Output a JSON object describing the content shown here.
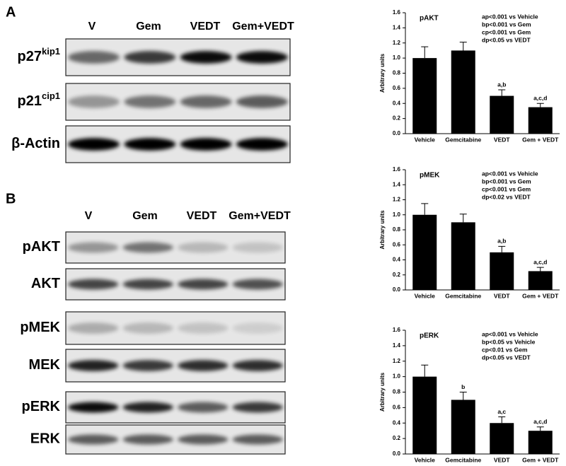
{
  "chart_data": [
    {
      "type": "bar",
      "title": "pAKT",
      "y_label": "Arbitrary units",
      "categories": [
        "Vehicle",
        "Gemcitabine",
        "VEDT",
        "Gem + VEDT"
      ],
      "values": [
        1.0,
        1.1,
        0.5,
        0.35
      ],
      "errors": [
        0.15,
        0.11,
        0.08,
        0.05
      ],
      "bar_labels": [
        null,
        null,
        "a,b",
        "a,c,d"
      ],
      "color": "#000000",
      "notes": [
        "ap<0.001 vs Vehicle",
        "bp<0.001 vs Gem",
        "cp<0.001 vs Gem",
        "dp<0.05 vs VEDT"
      ],
      "ylim": [
        0,
        1.6
      ],
      "yticks": [
        {
          "value": 0,
          "label": "0.0"
        },
        {
          "value": 0.2,
          "label": "0.2"
        },
        {
          "value": 0.4,
          "label": "0.4"
        },
        {
          "value": 0.6,
          "label": "0.6"
        },
        {
          "value": 0.8,
          "label": "0.8"
        },
        {
          "value": 1,
          "label": "1.0"
        },
        {
          "value": 1.2,
          "label": "1.2"
        },
        {
          "value": 1.4,
          "label": "1.4"
        },
        {
          "value": 1.6,
          "label": "1.6"
        }
      ]
    },
    {
      "type": "bar",
      "title": "pMEK",
      "y_label": "Arbitrary units",
      "categories": [
        "Vehicle",
        "Gemcitabine",
        "VEDT",
        "Gem + VEDT"
      ],
      "values": [
        1.0,
        0.9,
        0.5,
        0.25
      ],
      "errors": [
        0.15,
        0.11,
        0.08,
        0.05
      ],
      "bar_labels": [
        null,
        null,
        "a,b",
        "a,c,d"
      ],
      "color": "#000000",
      "notes": [
        "ap<0.001 vs Vehicle",
        "bp<0.001 vs Gem",
        "cp<0.001 vs Gem",
        "dp<0.02 vs VEDT"
      ],
      "ylim": [
        0,
        1.6
      ],
      "yticks": [
        {
          "value": 0,
          "label": "0.0"
        },
        {
          "value": 0.2,
          "label": "0.2"
        },
        {
          "value": 0.4,
          "label": "0.4"
        },
        {
          "value": 0.6,
          "label": "0.6"
        },
        {
          "value": 0.8,
          "label": "0.8"
        },
        {
          "value": 1,
          "label": "1.0"
        },
        {
          "value": 1.2,
          "label": "1.2"
        },
        {
          "value": 1.4,
          "label": "1.4"
        },
        {
          "value": 1.6,
          "label": "1.6"
        }
      ]
    },
    {
      "type": "bar",
      "title": "pERK",
      "y_label": "Arbitrary units",
      "categories": [
        "Vehicle",
        "Gemcitabine",
        "VEDT",
        "Gem + VEDT"
      ],
      "values": [
        1.0,
        0.7,
        0.4,
        0.3
      ],
      "errors": [
        0.15,
        0.1,
        0.08,
        0.05
      ],
      "bar_labels": [
        null,
        "b",
        "a,c",
        "a,c,d"
      ],
      "color": "#000000",
      "notes": [
        "ap<0.001 vs Vehicle",
        "bp<0.05 vs Vehicle",
        "cp<0.01 vs Gem",
        "dp<0.05 vs VEDT"
      ],
      "ylim": [
        0,
        1.6
      ],
      "yticks": [
        {
          "value": 0,
          "label": "0.0"
        },
        {
          "value": 0.2,
          "label": "0.2"
        },
        {
          "value": 0.4,
          "label": "0.4"
        },
        {
          "value": 0.6,
          "label": "0.6"
        },
        {
          "value": 0.8,
          "label": "0.8"
        },
        {
          "value": 1,
          "label": "1.0"
        },
        {
          "value": 1.2,
          "label": "1.2"
        },
        {
          "value": 1.4,
          "label": "1.4"
        },
        {
          "value": 1.6,
          "label": "1.6"
        }
      ]
    }
  ],
  "blots": [
    {
      "label": "A",
      "lanes": [
        "V",
        "Gem",
        "VEDT",
        "Gem+VEDT"
      ],
      "rows": [
        {
          "label": "p27",
          "sup": "kip1"
        },
        {
          "label": "p21",
          "sup": "cip1"
        },
        {
          "label": "β-Actin"
        }
      ]
    },
    {
      "label": "B",
      "lanes": [
        "V",
        "Gem",
        "VEDT",
        "Gem+VEDT"
      ],
      "rows": [
        {
          "label": "pAKT"
        },
        {
          "label": "AKT"
        },
        {
          "label": "pMEK"
        },
        {
          "label": "MEK"
        },
        {
          "label": "pERK"
        },
        {
          "label": "ERK"
        }
      ]
    }
  ]
}
